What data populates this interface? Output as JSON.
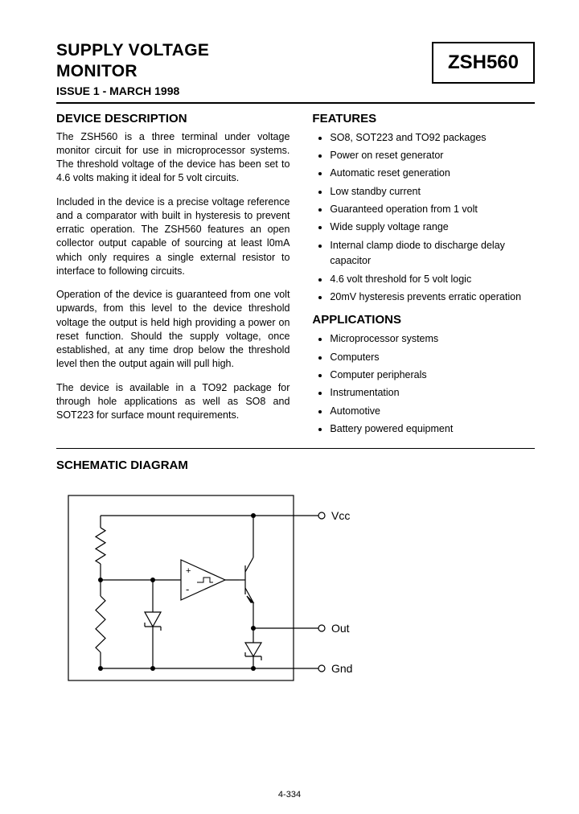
{
  "header": {
    "title_line1": "SUPPLY VOLTAGE",
    "title_line2": "MONITOR",
    "issue": "ISSUE 1 - MARCH 1998",
    "part_number": "ZSH560"
  },
  "description": {
    "heading": "DEVICE DESCRIPTION",
    "paragraphs": [
      "The ZSH560 is a three terminal under voltage monitor circuit for use in microprocessor systems. The threshold voltage of the device has been set to 4.6 volts making it ideal for 5 volt circuits.",
      "Included in the device is a precise voltage reference and a comparator with built in hysteresis to prevent erratic operation. The ZSH560 features an open collector output capable of sourcing at least l0mA which only requires a single external resistor to interface to following circuits.",
      "Operation of the device is guaranteed from one volt upwards, from this level to the device threshold voltage the output is held high providing a power on reset function. Should the supply voltage, once established, at any time drop below the threshold level then the output again will pull high.",
      "The device is available in a TO92 package for through hole applications as well as SO8 and SOT223 for surface mount requirements."
    ]
  },
  "features": {
    "heading": "FEATURES",
    "items": [
      "SO8, SOT223 and TO92 packages",
      "Power on reset generator",
      "Automatic reset generation",
      "Low standby current",
      "Guaranteed operation from 1 volt",
      "Wide supply voltage range",
      "Internal clamp diode to discharge delay capacitor",
      "4.6 volt threshold for 5 volt logic",
      "20mV hysteresis prevents erratic operation"
    ]
  },
  "applications": {
    "heading": "APPLICATIONS",
    "items": [
      "Microprocessor systems",
      "Computers",
      "Computer peripherals",
      "Instrumentation",
      "Automotive",
      "Battery powered equipment"
    ]
  },
  "schematic": {
    "heading": "SCHEMATIC DIAGRAM",
    "labels": {
      "vcc": "Vcc",
      "out": "Out",
      "gnd": "Gnd"
    },
    "stroke_color": "#000000",
    "stroke_width": 1.2,
    "fill_color": "#ffffff",
    "node_radius": 3,
    "terminal_radius": 4
  },
  "page_number": "4-334"
}
